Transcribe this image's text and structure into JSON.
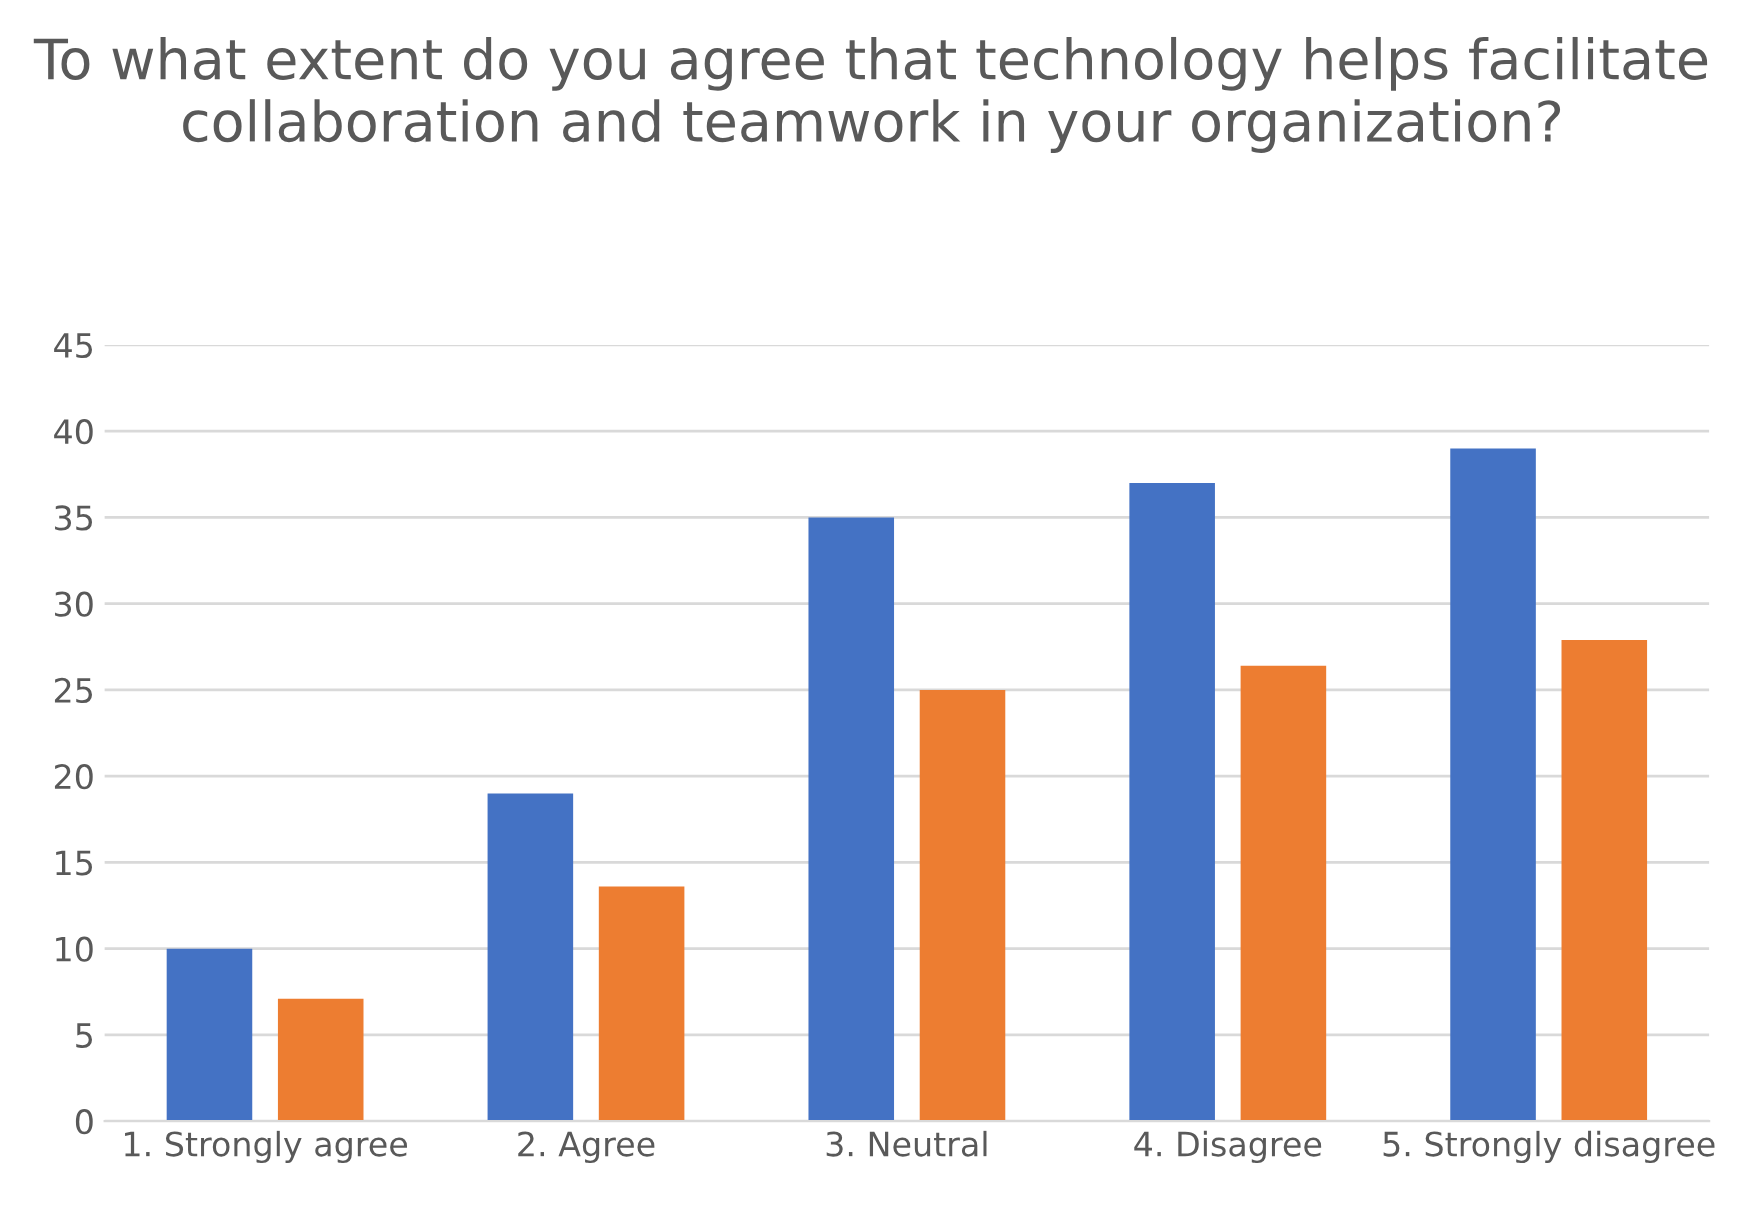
{
  "chart_data": {
    "type": "bar",
    "title": "To what extent do you agree that technology helps facilitate collaboration and teamwork in your organization?",
    "categories": [
      "1. Strongly agree",
      "2. Agree",
      "3. Neutral",
      "4. Disagree",
      "5. Strongly disagree"
    ],
    "series": [
      {
        "color": "#4472c4",
        "values": [
          10,
          19,
          35,
          37,
          39
        ]
      },
      {
        "color": "#ed7d31",
        "values": [
          7.1,
          13.6,
          25,
          26.4,
          27.9
        ]
      }
    ],
    "ylim": [
      0,
      45
    ],
    "yticks": [
      0,
      5,
      10,
      15,
      20,
      25,
      30,
      35,
      40,
      45
    ],
    "grid": "y"
  }
}
